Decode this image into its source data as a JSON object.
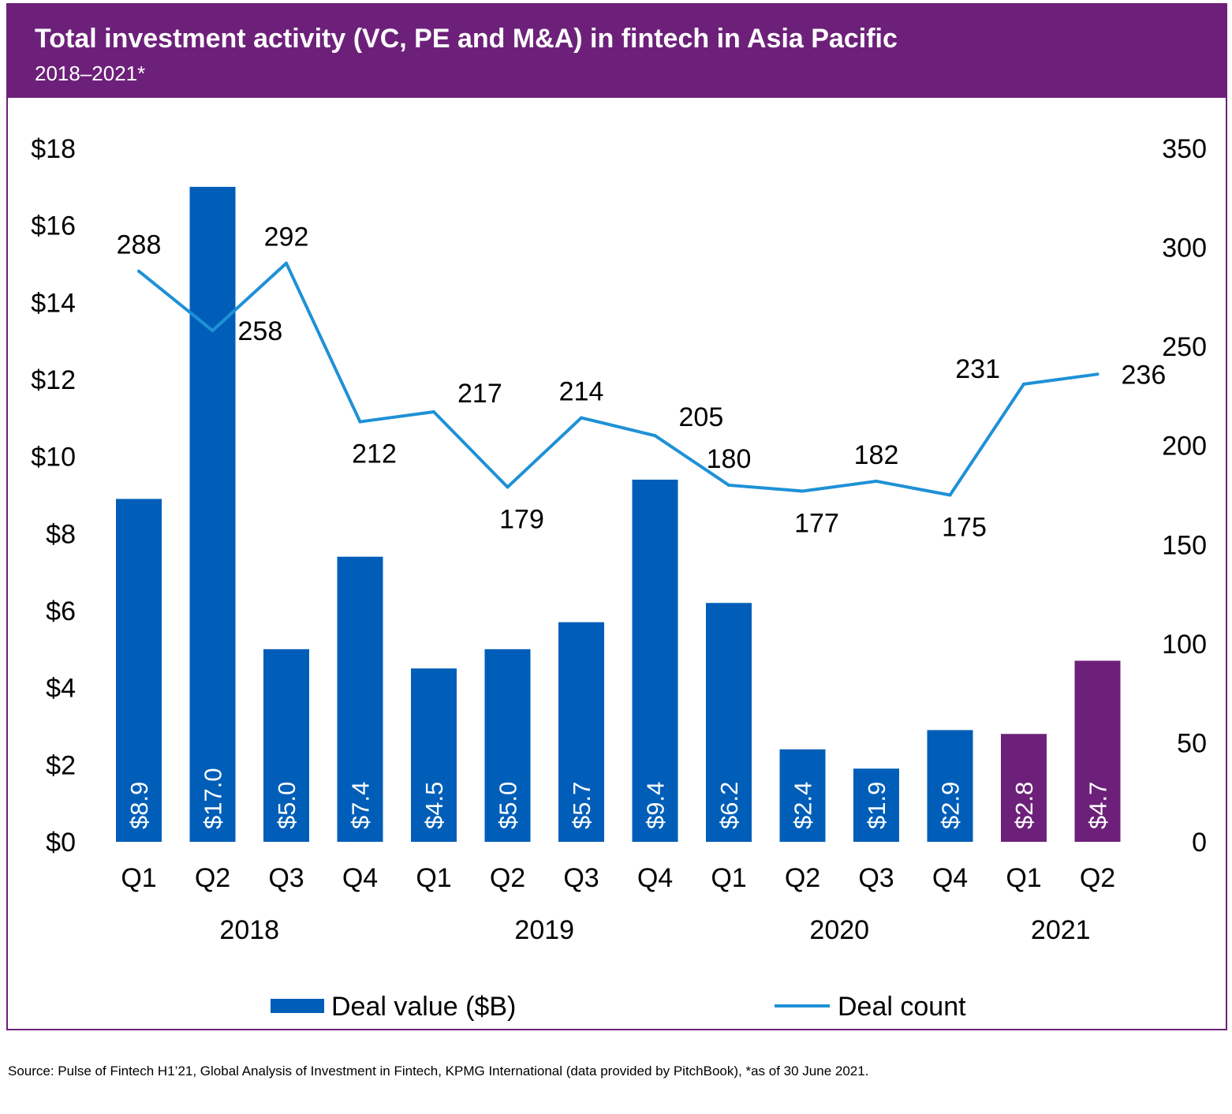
{
  "header": {
    "title": "Total investment activity (VC, PE and M&A) in fintech in Asia Pacific",
    "subtitle": "2018–2021*"
  },
  "source": "Source: Pulse of Fintech H1’21, Global Analysis of Investment in Fintech, KPMG International (data provided by PitchBook), *as of 30 June 2021.",
  "colors": {
    "header_bg": "#6d207a",
    "bar_primary": "#005eb8",
    "bar_highlight": "#6d207a",
    "line": "#1e91d6"
  },
  "chart_data": {
    "type": "bar",
    "categories": [
      "Q1",
      "Q2",
      "Q3",
      "Q4",
      "Q1",
      "Q2",
      "Q3",
      "Q4",
      "Q1",
      "Q2",
      "Q3",
      "Q4",
      "Q1",
      "Q2"
    ],
    "years": [
      {
        "label": "2018",
        "start": 0,
        "end": 3
      },
      {
        "label": "2019",
        "start": 4,
        "end": 7
      },
      {
        "label": "2020",
        "start": 8,
        "end": 11
      },
      {
        "label": "2021",
        "start": 12,
        "end": 13
      }
    ],
    "series": [
      {
        "name": "Deal value ($B)",
        "type": "bar",
        "axis": "left",
        "values": [
          8.9,
          17.0,
          5.0,
          7.4,
          4.5,
          5.0,
          5.7,
          9.4,
          6.2,
          2.4,
          1.9,
          2.9,
          2.8,
          4.7
        ],
        "labels": [
          "$8.9",
          "$17.0",
          "$5.0",
          "$7.4",
          "$4.5",
          "$5.0",
          "$5.7",
          "$9.4",
          "$6.2",
          "$2.4",
          "$1.9",
          "$2.9",
          "$2.8",
          "$4.7"
        ],
        "highlight_indices": [
          12,
          13
        ]
      },
      {
        "name": "Deal count",
        "type": "line",
        "axis": "right",
        "values": [
          288,
          258,
          292,
          212,
          217,
          179,
          214,
          205,
          180,
          177,
          182,
          175,
          231,
          236
        ],
        "labels": [
          "288",
          "258",
          "292",
          "212",
          "217",
          "179",
          "214",
          "205",
          "180",
          "177",
          "182",
          "175",
          "231",
          "236"
        ],
        "label_positions": [
          "above",
          "right",
          "above",
          "below",
          "right",
          "below",
          "above",
          "right",
          "above",
          "below",
          "above",
          "below",
          "left",
          "right"
        ]
      }
    ],
    "y_left": {
      "ylim": [
        0,
        18
      ],
      "ticks": [
        0,
        2,
        4,
        6,
        8,
        10,
        12,
        14,
        16,
        18
      ],
      "tick_labels": [
        "$0",
        "$2",
        "$4",
        "$6",
        "$8",
        "$10",
        "$12",
        "$14",
        "$16",
        "$18"
      ]
    },
    "y_right": {
      "ylim": [
        0,
        350
      ],
      "ticks": [
        0,
        50,
        100,
        150,
        200,
        250,
        300,
        350
      ],
      "tick_labels": [
        "0",
        "50",
        "100",
        "150",
        "200",
        "250",
        "300",
        "350"
      ]
    },
    "grid": false,
    "legend_position": "bottom"
  }
}
